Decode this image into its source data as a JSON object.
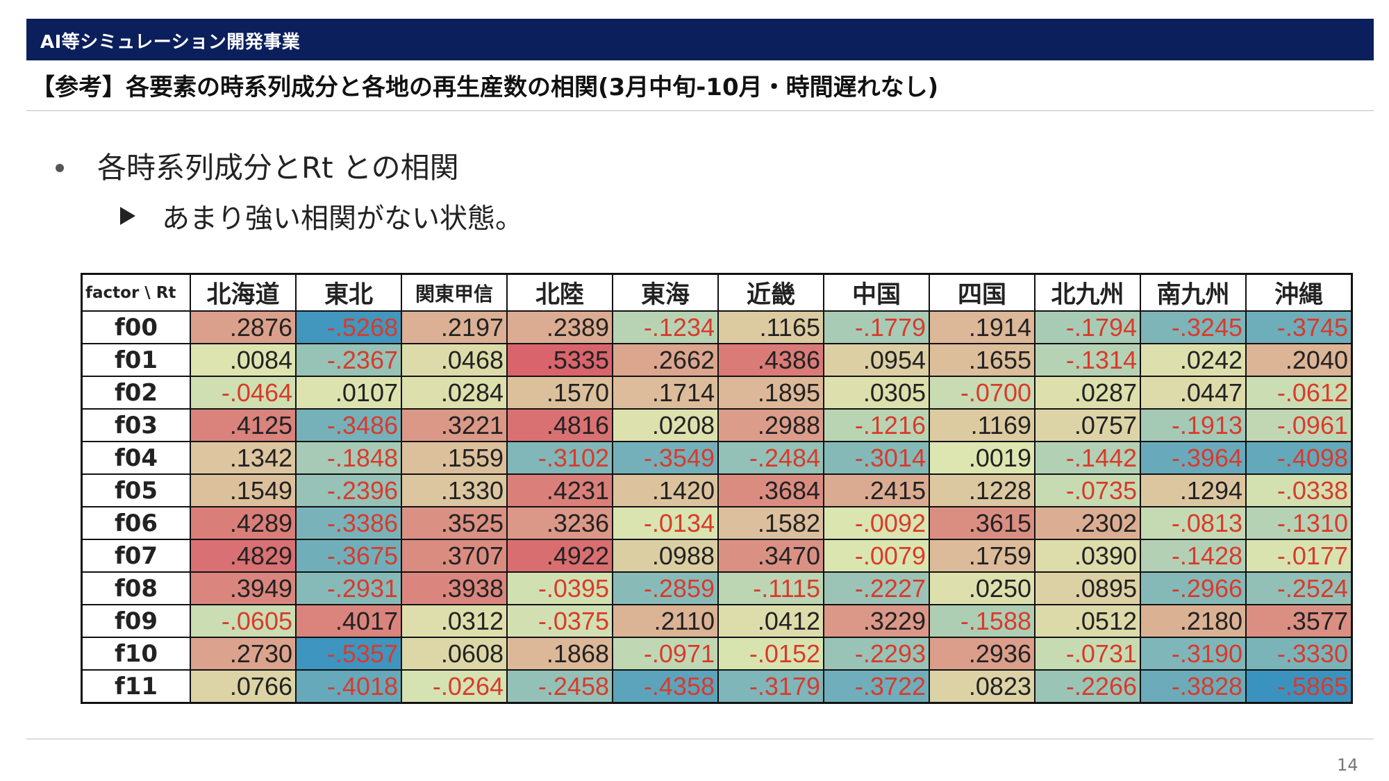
{
  "header": {
    "banner": "AI等シミュレーション開発事業",
    "title": "【参考】各要素の時系列成分と各地の再生産数の相関(3月中旬-10月・時間遅れなし)"
  },
  "bullets": {
    "level1": "各時系列成分とRt との相関",
    "level2": "あまり強い相関がない状態。"
  },
  "page_number": "14",
  "colors": {
    "banner": "#0b1f5c",
    "negative_text": "#d93a2b",
    "scale_positive": "#d9606a",
    "scale_neutral": "#dde6b0",
    "scale_negative": "#3a93bf"
  },
  "chart_data": {
    "type": "heatmap",
    "corner_label": "factor \\ Rt",
    "columns": [
      "北海道",
      "東北",
      "関東甲信",
      "北陸",
      "東海",
      "近畿",
      "中国",
      "四国",
      "北九州",
      "南九州",
      "沖縄"
    ],
    "rows": [
      {
        "label": "f00",
        "cells": [
          ".2876",
          "-.5268",
          ".2197",
          ".2389",
          "-.1234",
          ".1165",
          "-.1779",
          ".1914",
          "-.1794",
          "-.3245",
          "-.3745"
        ]
      },
      {
        "label": "f01",
        "cells": [
          ".0084",
          "-.2367",
          ".0468",
          ".5335",
          ".2662",
          ".4386",
          ".0954",
          ".1655",
          "-.1314",
          ".0242",
          ".2040"
        ]
      },
      {
        "label": "f02",
        "cells": [
          "-.0464",
          ".0107",
          ".0284",
          ".1570",
          ".1714",
          ".1895",
          ".0305",
          "-.0700",
          ".0287",
          ".0447",
          "-.0612"
        ]
      },
      {
        "label": "f03",
        "cells": [
          ".4125",
          "-.3486",
          ".3221",
          ".4816",
          ".0208",
          ".2988",
          "-.1216",
          ".1169",
          ".0757",
          "-.1913",
          "-.0961"
        ]
      },
      {
        "label": "f04",
        "cells": [
          ".1342",
          "-.1848",
          ".1559",
          "-.3102",
          "-.3549",
          "-.2484",
          "-.3014",
          ".0019",
          "-.1442",
          "-.3964",
          "-.4098"
        ]
      },
      {
        "label": "f05",
        "cells": [
          ".1549",
          "-.2396",
          ".1330",
          ".4231",
          ".1420",
          ".3684",
          ".2415",
          ".1228",
          "-.0735",
          ".1294",
          "-.0338"
        ]
      },
      {
        "label": "f06",
        "cells": [
          ".4289",
          "-.3386",
          ".3525",
          ".3236",
          "-.0134",
          ".1582",
          "-.0092",
          ".3615",
          ".2302",
          "-.0813",
          "-.1310"
        ]
      },
      {
        "label": "f07",
        "cells": [
          ".4829",
          "-.3675",
          ".3707",
          ".4922",
          ".0988",
          ".3470",
          "-.0079",
          ".1759",
          ".0390",
          "-.1428",
          "-.0177"
        ]
      },
      {
        "label": "f08",
        "cells": [
          ".3949",
          "-.2931",
          ".3938",
          "-.0395",
          "-.2859",
          "-.1115",
          "-.2227",
          ".0250",
          ".0895",
          "-.2966",
          "-.2524"
        ]
      },
      {
        "label": "f09",
        "cells": [
          "-.0605",
          ".4017",
          ".0312",
          "-.0375",
          ".2110",
          ".0412",
          ".3229",
          "-.1588",
          ".0512",
          ".2180",
          ".3577"
        ]
      },
      {
        "label": "f10",
        "cells": [
          ".2730",
          "-.5357",
          ".0608",
          ".1868",
          "-.0971",
          "-.0152",
          "-.2293",
          ".2936",
          "-.0731",
          "-.3190",
          "-.3330"
        ]
      },
      {
        "label": "f11",
        "cells": [
          ".0766",
          "-.4018",
          "-.0264",
          "-.2458",
          "-.4358",
          "-.3179",
          "-.3722",
          ".0823",
          "-.2266",
          "-.3828",
          "-.5865"
        ]
      }
    ]
  }
}
